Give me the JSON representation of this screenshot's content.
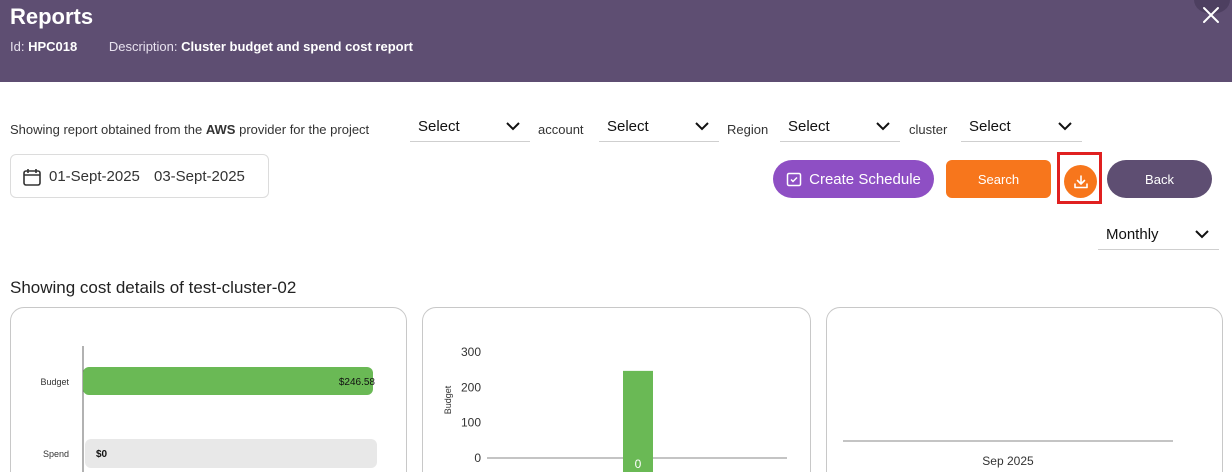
{
  "header": {
    "title": "Reports",
    "id_label": "Id:",
    "id_value": "HPC018",
    "description_label": "Description:",
    "description_value": "Cluster budget and spend cost report"
  },
  "filters": {
    "prefix": "Showing report obtained from the",
    "provider": "AWS",
    "suffix": "provider for the project",
    "project_select": "Select",
    "account_label": "account",
    "account_select": "Select",
    "region_label": "Region",
    "region_select": "Select",
    "cluster_label": "cluster",
    "cluster_select": "Select"
  },
  "date_range": {
    "start": "01-Sept-2025",
    "end": "03-Sept-2025"
  },
  "actions": {
    "create_schedule": "Create Schedule",
    "search": "Search",
    "back": "Back"
  },
  "period": {
    "selected": "Monthly"
  },
  "section_title": "Showing cost details of test-cluster-02",
  "colors": {
    "header_bg": "#5e4e72",
    "schedule_btn": "#8e4fc4",
    "accent_orange": "#f7761c",
    "budget_bar": "#6ab955",
    "spend_track": "#e8e8e8",
    "highlight": "#e02020"
  },
  "chart_data": [
    {
      "type": "bar",
      "orientation": "horizontal",
      "categories": [
        "Budget",
        "Spend"
      ],
      "values": [
        246.58,
        0
      ],
      "value_labels": [
        "$246.58",
        "$0"
      ],
      "xlim": [
        0,
        246.58
      ]
    },
    {
      "type": "bar",
      "ylabel": "Budget",
      "yticks": [
        0,
        100,
        200,
        300
      ],
      "ylim": [
        0,
        300
      ],
      "bar_value": 246.58,
      "bar_label": "0"
    },
    {
      "type": "line",
      "x_tick": "Sep 2025"
    }
  ]
}
